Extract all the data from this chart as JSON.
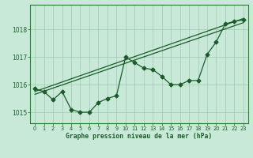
{
  "xlabel": "Graphe pression niveau de la mer (hPa)",
  "background_color": "#c8e8d8",
  "grid_color": "#a0c8b0",
  "line_color": "#1a5c2a",
  "spine_color": "#2d7a3a",
  "x_ticks": [
    0,
    1,
    2,
    3,
    4,
    5,
    6,
    7,
    8,
    9,
    10,
    11,
    12,
    13,
    14,
    15,
    16,
    17,
    18,
    19,
    20,
    21,
    22,
    23
  ],
  "ylim": [
    1014.6,
    1018.9
  ],
  "yticks": [
    1015,
    1016,
    1017,
    1018
  ],
  "line1": [
    1015.85,
    1015.75,
    1015.45,
    1015.75,
    1015.1,
    1015.0,
    1015.0,
    1015.35,
    1015.5,
    1015.6,
    1017.0,
    1016.8,
    1016.6,
    1016.55,
    1016.3,
    1016.0,
    1016.0,
    1016.15,
    1016.15,
    1017.1,
    1017.55,
    1018.2,
    1018.3,
    1018.35
  ],
  "line2_x": [
    0,
    23
  ],
  "line2_y": [
    1015.75,
    1018.4
  ],
  "line3_x": [
    0,
    23
  ],
  "line3_y": [
    1015.65,
    1018.25
  ],
  "marker": "D",
  "markersize": 2.5,
  "linewidth": 0.9
}
